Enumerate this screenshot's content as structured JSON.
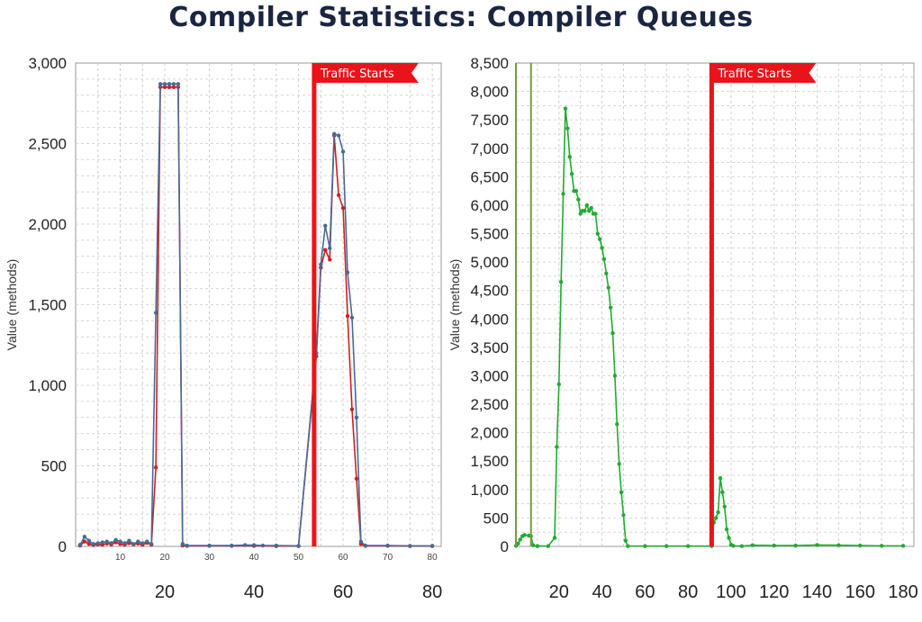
{
  "title": "Compiler Statistics: Compiler Queues",
  "chart_data": [
    {
      "type": "line",
      "ylabel": "Value (methods)",
      "xlim": [
        0,
        82
      ],
      "ylim": [
        0,
        3000
      ],
      "yticks": [
        0,
        500,
        1000,
        1500,
        2000,
        2500,
        3000
      ],
      "ytick_labels": [
        "0",
        "500",
        "1,000",
        "1,500",
        "2,000",
        "2,500",
        "3,000"
      ],
      "x_small_ticks": [
        10,
        20,
        30,
        40,
        50,
        60,
        70,
        80
      ],
      "x_big_ticks": [
        20,
        40,
        60,
        80
      ],
      "grid": true,
      "annotation": {
        "label": "Traffic Starts",
        "x": 53.5,
        "color": "#e8141a"
      },
      "series": [
        {
          "color": "#cc2222",
          "points": [
            [
              1,
              5
            ],
            [
              2,
              30
            ],
            [
              3,
              15
            ],
            [
              4,
              8
            ],
            [
              5,
              12
            ],
            [
              6,
              10
            ],
            [
              7,
              18
            ],
            [
              8,
              12
            ],
            [
              9,
              25
            ],
            [
              10,
              15
            ],
            [
              11,
              10
            ],
            [
              12,
              20
            ],
            [
              13,
              12
            ],
            [
              14,
              18
            ],
            [
              15,
              10
            ],
            [
              16,
              22
            ],
            [
              17,
              10
            ],
            [
              18,
              490
            ],
            [
              19,
              2850
            ],
            [
              20,
              2850
            ],
            [
              21,
              2850
            ],
            [
              22,
              2850
            ],
            [
              23,
              2850
            ],
            [
              24,
              5
            ],
            [
              25,
              3
            ],
            [
              30,
              3
            ],
            [
              35,
              3
            ],
            [
              40,
              3
            ],
            [
              45,
              2
            ],
            [
              50,
              2
            ],
            [
              54,
              1180
            ],
            [
              55,
              1730
            ],
            [
              56,
              1840
            ],
            [
              57,
              1780
            ],
            [
              58,
              2550
            ],
            [
              59,
              2180
            ],
            [
              60,
              2100
            ],
            [
              61,
              1430
            ],
            [
              62,
              850
            ],
            [
              63,
              420
            ],
            [
              64,
              15
            ],
            [
              65,
              3
            ],
            [
              70,
              3
            ],
            [
              75,
              2
            ],
            [
              80,
              2
            ]
          ]
        },
        {
          "color": "#4a6a96",
          "points": [
            [
              1,
              10
            ],
            [
              2,
              60
            ],
            [
              3,
              35
            ],
            [
              4,
              15
            ],
            [
              5,
              20
            ],
            [
              6,
              25
            ],
            [
              7,
              30
            ],
            [
              8,
              20
            ],
            [
              9,
              40
            ],
            [
              10,
              30
            ],
            [
              11,
              20
            ],
            [
              12,
              35
            ],
            [
              13,
              15
            ],
            [
              14,
              30
            ],
            [
              15,
              20
            ],
            [
              16,
              30
            ],
            [
              17,
              15
            ],
            [
              18,
              1450
            ],
            [
              19,
              2870
            ],
            [
              20,
              2870
            ],
            [
              21,
              2870
            ],
            [
              22,
              2870
            ],
            [
              23,
              2870
            ],
            [
              24,
              15
            ],
            [
              25,
              5
            ],
            [
              30,
              5
            ],
            [
              35,
              5
            ],
            [
              38,
              8
            ],
            [
              40,
              8
            ],
            [
              42,
              5
            ],
            [
              45,
              5
            ],
            [
              50,
              3
            ],
            [
              54,
              1200
            ],
            [
              55,
              1750
            ],
            [
              56,
              1990
            ],
            [
              57,
              1850
            ],
            [
              58,
              2560
            ],
            [
              59,
              2550
            ],
            [
              60,
              2450
            ],
            [
              61,
              1700
            ],
            [
              62,
              1420
            ],
            [
              63,
              800
            ],
            [
              64,
              30
            ],
            [
              65,
              5
            ],
            [
              70,
              5
            ],
            [
              75,
              3
            ],
            [
              80,
              3
            ]
          ]
        }
      ]
    },
    {
      "type": "line",
      "ylabel": "Value (methods)",
      "xlim": [
        0,
        185
      ],
      "ylim": [
        0,
        8500
      ],
      "yticks": [
        0,
        500,
        1000,
        1500,
        2000,
        2500,
        3000,
        3500,
        4000,
        4500,
        5000,
        5500,
        6000,
        6500,
        7000,
        7500,
        8000,
        8500
      ],
      "ytick_labels": [
        "0",
        "500",
        "1,000",
        "1,500",
        "2,000",
        "2,500",
        "3,000",
        "3,500",
        "4,000",
        "4,500",
        "5,000",
        "5,500",
        "6,000",
        "6,500",
        "7,000",
        "7,500",
        "8,000",
        "8,500"
      ],
      "x_big_ticks": [
        20,
        40,
        60,
        80,
        100,
        120,
        140,
        160,
        180
      ],
      "grid": true,
      "annotation": {
        "label": "Traffic Starts",
        "x": 91,
        "color": "#e8141a"
      },
      "series": [
        {
          "color": "#22aa33",
          "points": [
            [
              0,
              10
            ],
            [
              1,
              50
            ],
            [
              2,
              120
            ],
            [
              3,
              180
            ],
            [
              4,
              200
            ],
            [
              6,
              190
            ],
            [
              7,
              180
            ],
            [
              8,
              20
            ],
            [
              10,
              5
            ],
            [
              15,
              5
            ],
            [
              18,
              150
            ],
            [
              19,
              1750
            ],
            [
              20,
              2850
            ],
            [
              21,
              4650
            ],
            [
              22,
              6200
            ],
            [
              23,
              7700
            ],
            [
              24,
              7350
            ],
            [
              25,
              6850
            ],
            [
              26,
              6550
            ],
            [
              27,
              6250
            ],
            [
              28,
              6250
            ],
            [
              29,
              6100
            ],
            [
              30,
              5850
            ],
            [
              31,
              5900
            ],
            [
              32,
              5900
            ],
            [
              33,
              6000
            ],
            [
              34,
              5900
            ],
            [
              35,
              5950
            ],
            [
              36,
              5850
            ],
            [
              37,
              5850
            ],
            [
              38,
              5500
            ],
            [
              39,
              5400
            ],
            [
              40,
              5250
            ],
            [
              41,
              5050
            ],
            [
              42,
              4800
            ],
            [
              43,
              4550
            ],
            [
              44,
              4200
            ],
            [
              45,
              3750
            ],
            [
              46,
              3000
            ],
            [
              47,
              2150
            ],
            [
              48,
              1450
            ],
            [
              49,
              950
            ],
            [
              50,
              550
            ],
            [
              51,
              100
            ],
            [
              52,
              5
            ],
            [
              60,
              5
            ],
            [
              70,
              5
            ],
            [
              80,
              5
            ],
            [
              91,
              5
            ],
            [
              92,
              420
            ],
            [
              93,
              500
            ],
            [
              94,
              600
            ],
            [
              95,
              1200
            ],
            [
              96,
              950
            ],
            [
              97,
              700
            ],
            [
              98,
              300
            ],
            [
              99,
              150
            ],
            [
              100,
              30
            ],
            [
              101,
              10
            ],
            [
              105,
              5
            ],
            [
              110,
              20
            ],
            [
              120,
              15
            ],
            [
              130,
              15
            ],
            [
              140,
              25
            ],
            [
              150,
              20
            ],
            [
              160,
              15
            ],
            [
              170,
              10
            ],
            [
              180,
              10
            ]
          ]
        },
        {
          "color": "#7a9a40",
          "points": [
            [
              0,
              0
            ],
            [
              0,
              8500
            ]
          ]
        },
        {
          "color": "#7a9a40",
          "points": [
            [
              7,
              0
            ],
            [
              7,
              8500
            ]
          ]
        }
      ]
    }
  ]
}
